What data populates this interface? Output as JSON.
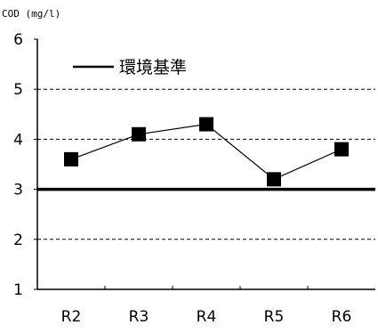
{
  "chart_data": {
    "type": "line",
    "unit_label": "COD (mg/l)",
    "categories": [
      "R2",
      "R3",
      "R4",
      "R5",
      "R6"
    ],
    "values": [
      3.6,
      4.1,
      4.3,
      3.2,
      3.8
    ],
    "ylim": [
      1,
      6
    ],
    "yticks": [
      "1",
      "2",
      "3",
      "4",
      "5",
      "6"
    ],
    "gridlines": [
      2,
      4,
      5
    ],
    "reference_line": {
      "value": 3,
      "label": "環境基準"
    },
    "legend_position": "top-left",
    "line_color": "#000000",
    "marker": "square"
  }
}
